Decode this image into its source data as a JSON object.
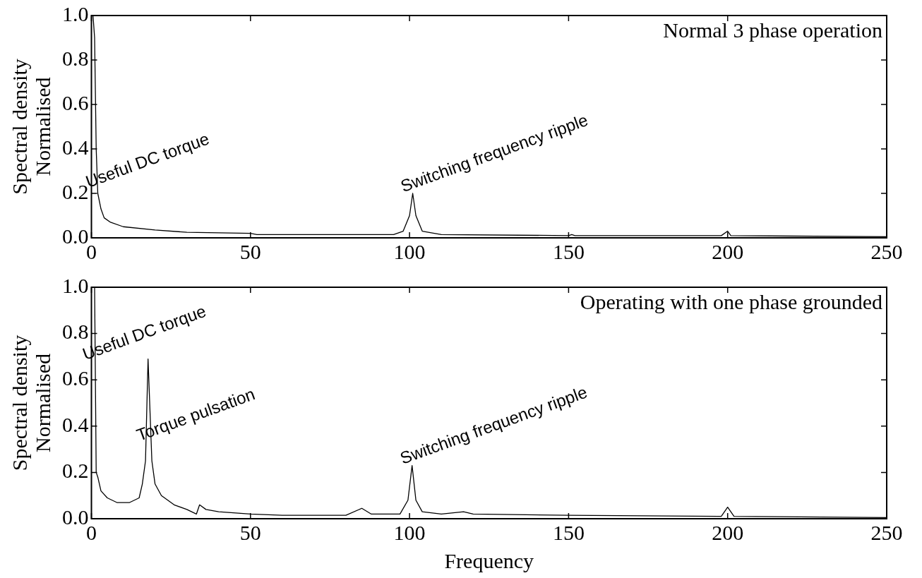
{
  "chart_data": [
    {
      "type": "line",
      "xlabel": null,
      "ylabel": "Spectral density\nNormalised",
      "xlim": [
        0,
        250
      ],
      "xticks": [
        0,
        50,
        100,
        150,
        200,
        250
      ],
      "ylim": [
        0,
        1
      ],
      "yticks": [
        {
          "value": 0,
          "label": "0.0"
        },
        {
          "value": 0.2,
          "label": "0.2"
        },
        {
          "value": 0.4,
          "label": "0.4"
        },
        {
          "value": 0.6,
          "label": "0.6"
        },
        {
          "value": 0.8,
          "label": "0.8"
        },
        {
          "value": 1,
          "label": "1.0"
        }
      ],
      "grid": false,
      "legend": false,
      "marker": "none",
      "annotations": [
        "Normal 3 phase operation",
        {
          "text": "Useful DC torque",
          "x": 2,
          "y": 0.22
        },
        {
          "text": "Switching frequency ripple",
          "x": 101,
          "y": 0.2
        }
      ],
      "series": [
        {
          "color": "#000000",
          "x": [
            0.5,
            1,
            1.5,
            2,
            3,
            4,
            6,
            10,
            20,
            30,
            50,
            52,
            60,
            95,
            98,
            100,
            101,
            102,
            104,
            110,
            150,
            151,
            152,
            198,
            200,
            201,
            220,
            250
          ],
          "values": [
            1.0,
            0.9,
            0.4,
            0.2,
            0.13,
            0.09,
            0.07,
            0.05,
            0.035,
            0.025,
            0.02,
            0.015,
            0.015,
            0.015,
            0.03,
            0.1,
            0.2,
            0.1,
            0.03,
            0.015,
            0.01,
            0.015,
            0.01,
            0.01,
            0.03,
            0.01,
            0.008,
            0.005
          ]
        }
      ]
    },
    {
      "type": "line",
      "xlabel": "Frequency",
      "ylabel": "Spectral density\nNormalised",
      "xlim": [
        0,
        250
      ],
      "xticks": [
        0,
        50,
        100,
        150,
        200,
        250
      ],
      "ylim": [
        0,
        1
      ],
      "yticks": [
        {
          "value": 0,
          "label": "0.0"
        },
        {
          "value": 0.2,
          "label": "0.2"
        },
        {
          "value": 0.4,
          "label": "0.4"
        },
        {
          "value": 0.6,
          "label": "0.6"
        },
        {
          "value": 0.8,
          "label": "0.8"
        },
        {
          "value": 1,
          "label": "1.0"
        }
      ],
      "grid": false,
      "legend": false,
      "marker": "none",
      "annotations": [
        "Operating with one phase grounded",
        {
          "text": "Useful DC torque",
          "x": 1,
          "y": 0.68
        },
        {
          "text": "Torque pulsation",
          "x": 18,
          "y": 0.33
        },
        {
          "text": "Switching frequency ripple",
          "x": 100.8,
          "y": 0.23
        }
      ],
      "series": [
        {
          "color": "#000000",
          "x": [
            0.5,
            1,
            1.5,
            2,
            3,
            5,
            8,
            12,
            15,
            16,
            17,
            17.8,
            19,
            20,
            22,
            26,
            30,
            33,
            34,
            36,
            40,
            50,
            60,
            80,
            85,
            88,
            97,
            99.5,
            100.8,
            102,
            104,
            110,
            117,
            120,
            150,
            198,
            200,
            202,
            250
          ],
          "values": [
            1.0,
            1.0,
            0.2,
            0.18,
            0.12,
            0.09,
            0.07,
            0.07,
            0.09,
            0.15,
            0.25,
            0.69,
            0.25,
            0.15,
            0.1,
            0.06,
            0.04,
            0.02,
            0.06,
            0.04,
            0.03,
            0.02,
            0.015,
            0.015,
            0.045,
            0.02,
            0.02,
            0.08,
            0.23,
            0.08,
            0.03,
            0.02,
            0.03,
            0.02,
            0.015,
            0.01,
            0.05,
            0.01,
            0.005
          ]
        }
      ]
    }
  ]
}
